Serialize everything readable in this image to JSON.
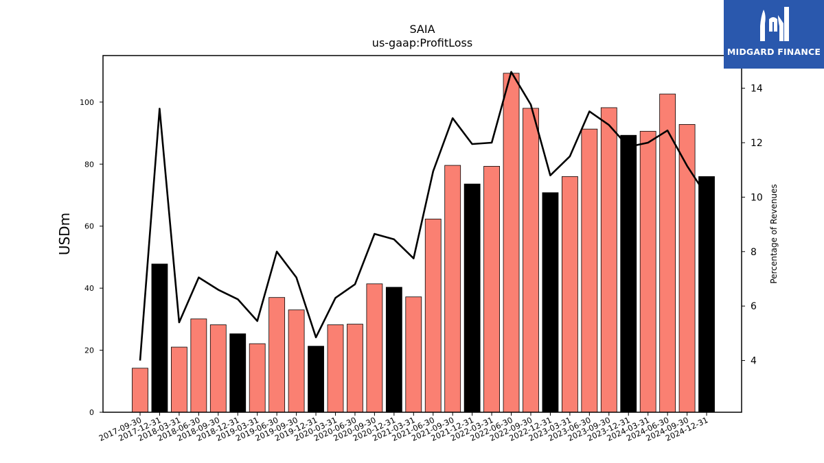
{
  "chart_data": {
    "type": "bar",
    "title": "SAIA",
    "subtitle": "us-gaap:ProfitLoss",
    "ylabel": "USDm",
    "y2label": "Percentage of Revenues",
    "ylim": [
      0,
      115
    ],
    "y2lim": [
      2.1,
      15.2
    ],
    "yticks": [
      0,
      20,
      40,
      60,
      80,
      100
    ],
    "y2ticks": [
      4,
      6,
      8,
      10,
      12,
      14
    ],
    "categories": [
      "2017-09-30",
      "2017-12-31",
      "2018-03-31",
      "2018-06-30",
      "2018-09-30",
      "2018-12-31",
      "2019-03-31",
      "2019-06-30",
      "2019-09-30",
      "2019-12-31",
      "2020-03-31",
      "2020-06-30",
      "2020-09-30",
      "2020-12-31",
      "2021-03-31",
      "2021-06-30",
      "2021-09-30",
      "2021-12-31",
      "2022-03-31",
      "2022-06-30",
      "2022-09-30",
      "2022-12-31",
      "2023-03-31",
      "2023-06-30",
      "2023-09-30",
      "2023-12-31",
      "2024-03-31",
      "2024-06-30",
      "2024-09-30",
      "2024-12-31"
    ],
    "series": [
      {
        "type": "bar",
        "values": [
          14.2,
          47.8,
          21.0,
          30.1,
          28.2,
          25.3,
          22.1,
          37.0,
          33.0,
          21.3,
          28.2,
          28.4,
          41.4,
          40.3,
          37.2,
          62.3,
          79.6,
          73.6,
          79.3,
          109.3,
          98.0,
          70.8,
          76.0,
          91.3,
          98.2,
          89.3,
          90.6,
          102.6,
          92.8,
          76.0
        ]
      },
      {
        "type": "line",
        "axis": "right",
        "values": [
          4.0,
          13.25,
          5.4,
          7.05,
          6.6,
          6.25,
          5.45,
          8.0,
          7.05,
          4.85,
          6.3,
          6.8,
          8.65,
          8.45,
          7.75,
          10.95,
          12.9,
          11.95,
          12.0,
          14.6,
          13.4,
          10.8,
          11.5,
          13.15,
          12.65,
          11.85,
          12.0,
          12.45,
          11.15,
          10.05
        ]
      }
    ],
    "bar_colors": {
      "quarter": "#fa8072",
      "year_end": "#000000"
    },
    "line_color": "#000000"
  },
  "logo": {
    "text": "MIDGARD FINANCE",
    "bg": "#2a58ad"
  }
}
